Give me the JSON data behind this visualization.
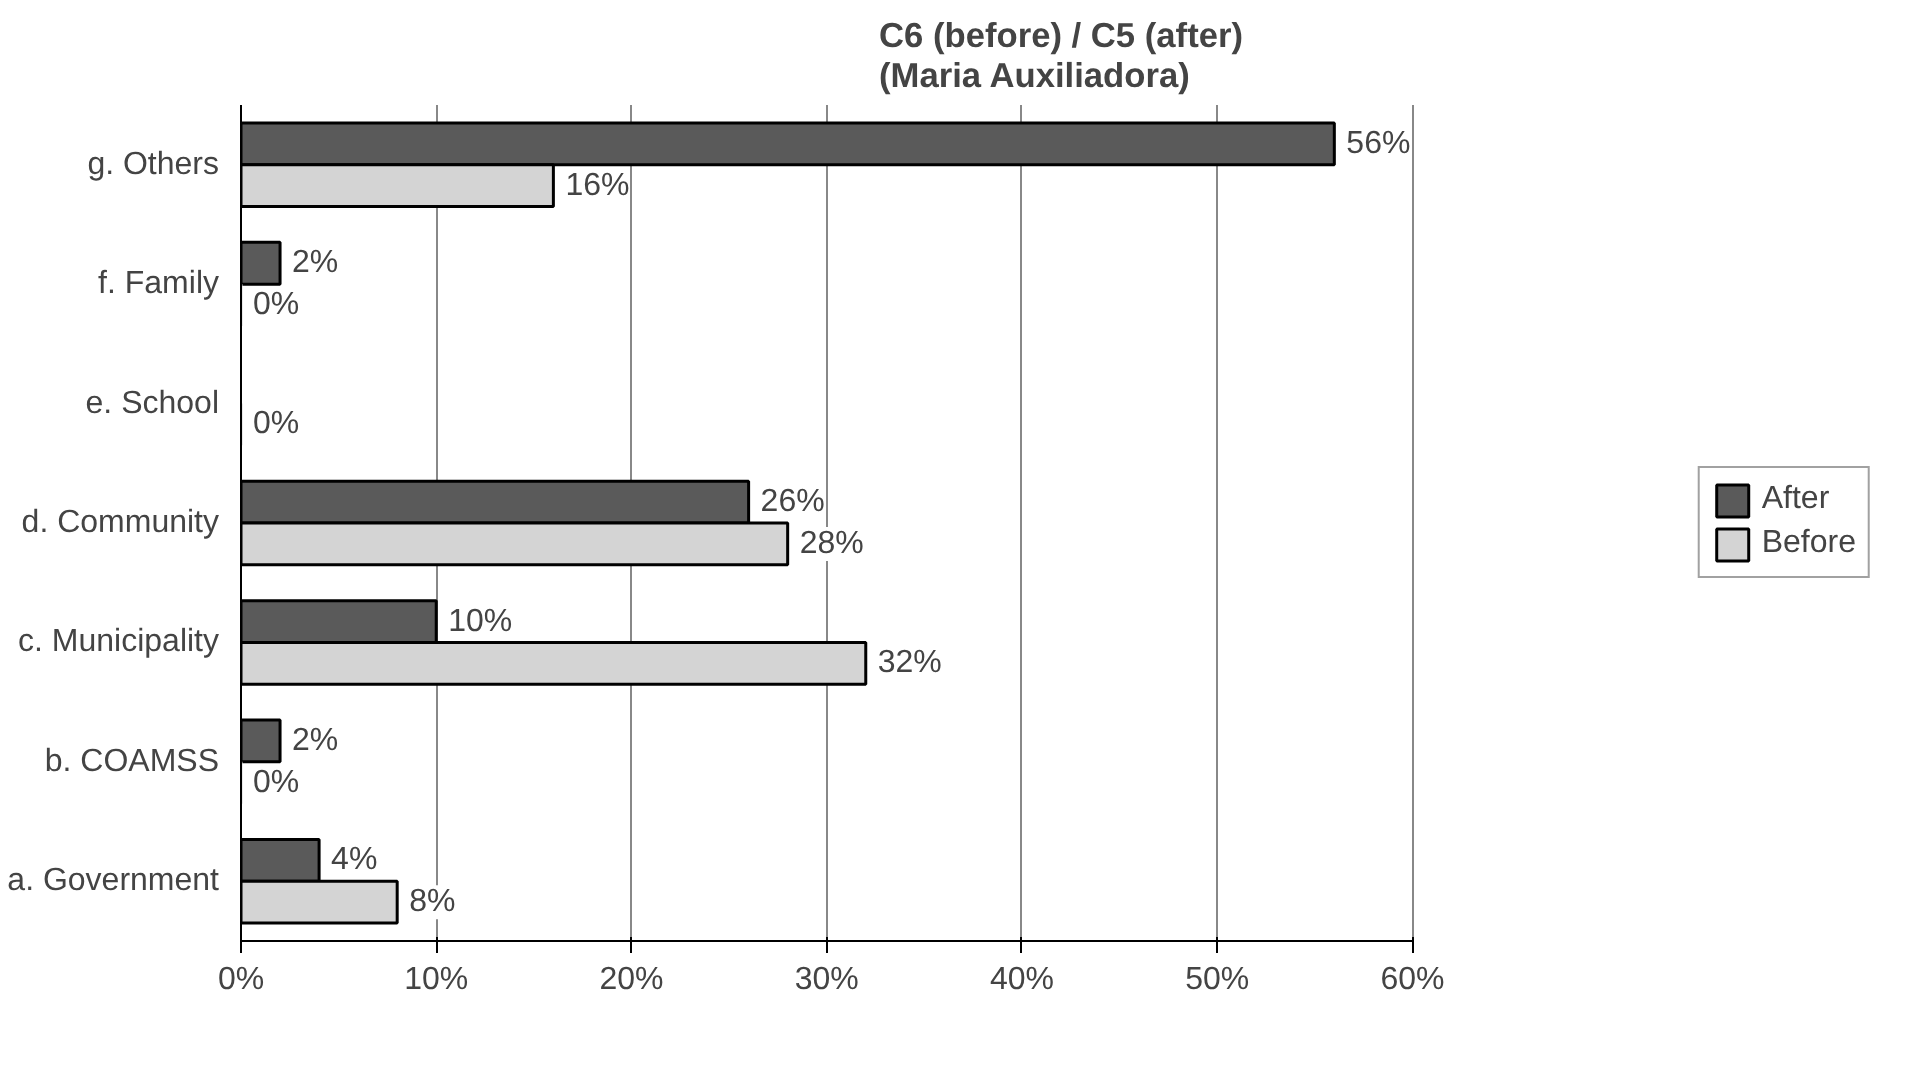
{
  "chart_data": {
    "type": "bar",
    "orientation": "horizontal",
    "title": "C6 (before) / C5 (after)\n(Maria Auxiliadora)",
    "categories": [
      "g. Others",
      "f. Family",
      "e. School",
      "d. Community",
      "c. Municipality",
      "b. COAMSS",
      "a. Government"
    ],
    "series": [
      {
        "name": "After",
        "color": "#5a5a5a",
        "values": [
          56,
          2,
          null,
          26,
          10,
          2,
          4
        ],
        "value_labels": [
          "56%",
          "2%",
          null,
          "26%",
          "10%",
          "2%",
          "4%"
        ]
      },
      {
        "name": "Before",
        "color": "#d4d4d4",
        "values": [
          16,
          0,
          0,
          28,
          32,
          0,
          8
        ],
        "value_labels": [
          "16%",
          "0%",
          "0%",
          "28%",
          "32%",
          "0%",
          "8%"
        ]
      }
    ],
    "xlim": [
      0,
      60
    ],
    "xticks": [
      {
        "value": 0,
        "label": "0%"
      },
      {
        "value": 10,
        "label": "10%"
      },
      {
        "value": 20,
        "label": "20%"
      },
      {
        "value": 30,
        "label": "30%"
      },
      {
        "value": 40,
        "label": "40%"
      },
      {
        "value": 50,
        "label": "50%"
      },
      {
        "value": 60,
        "label": "60%"
      }
    ],
    "grid": "x",
    "legend": "right"
  }
}
